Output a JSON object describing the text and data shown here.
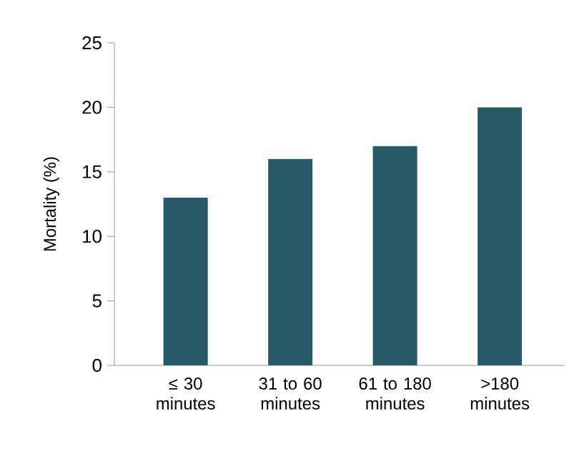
{
  "chart_data": {
    "type": "bar",
    "categories": [
      "≤ 30 minutes",
      "31 to 60 minutes",
      "61 to 180 minutes",
      ">180 minutes"
    ],
    "values": [
      13,
      16,
      17,
      20
    ],
    "color": "#265a66",
    "ylabel": "Mortality (%)",
    "ylim": [
      0,
      25
    ],
    "yticks": [
      0,
      5,
      10,
      15,
      20,
      25
    ],
    "grid": false
  }
}
